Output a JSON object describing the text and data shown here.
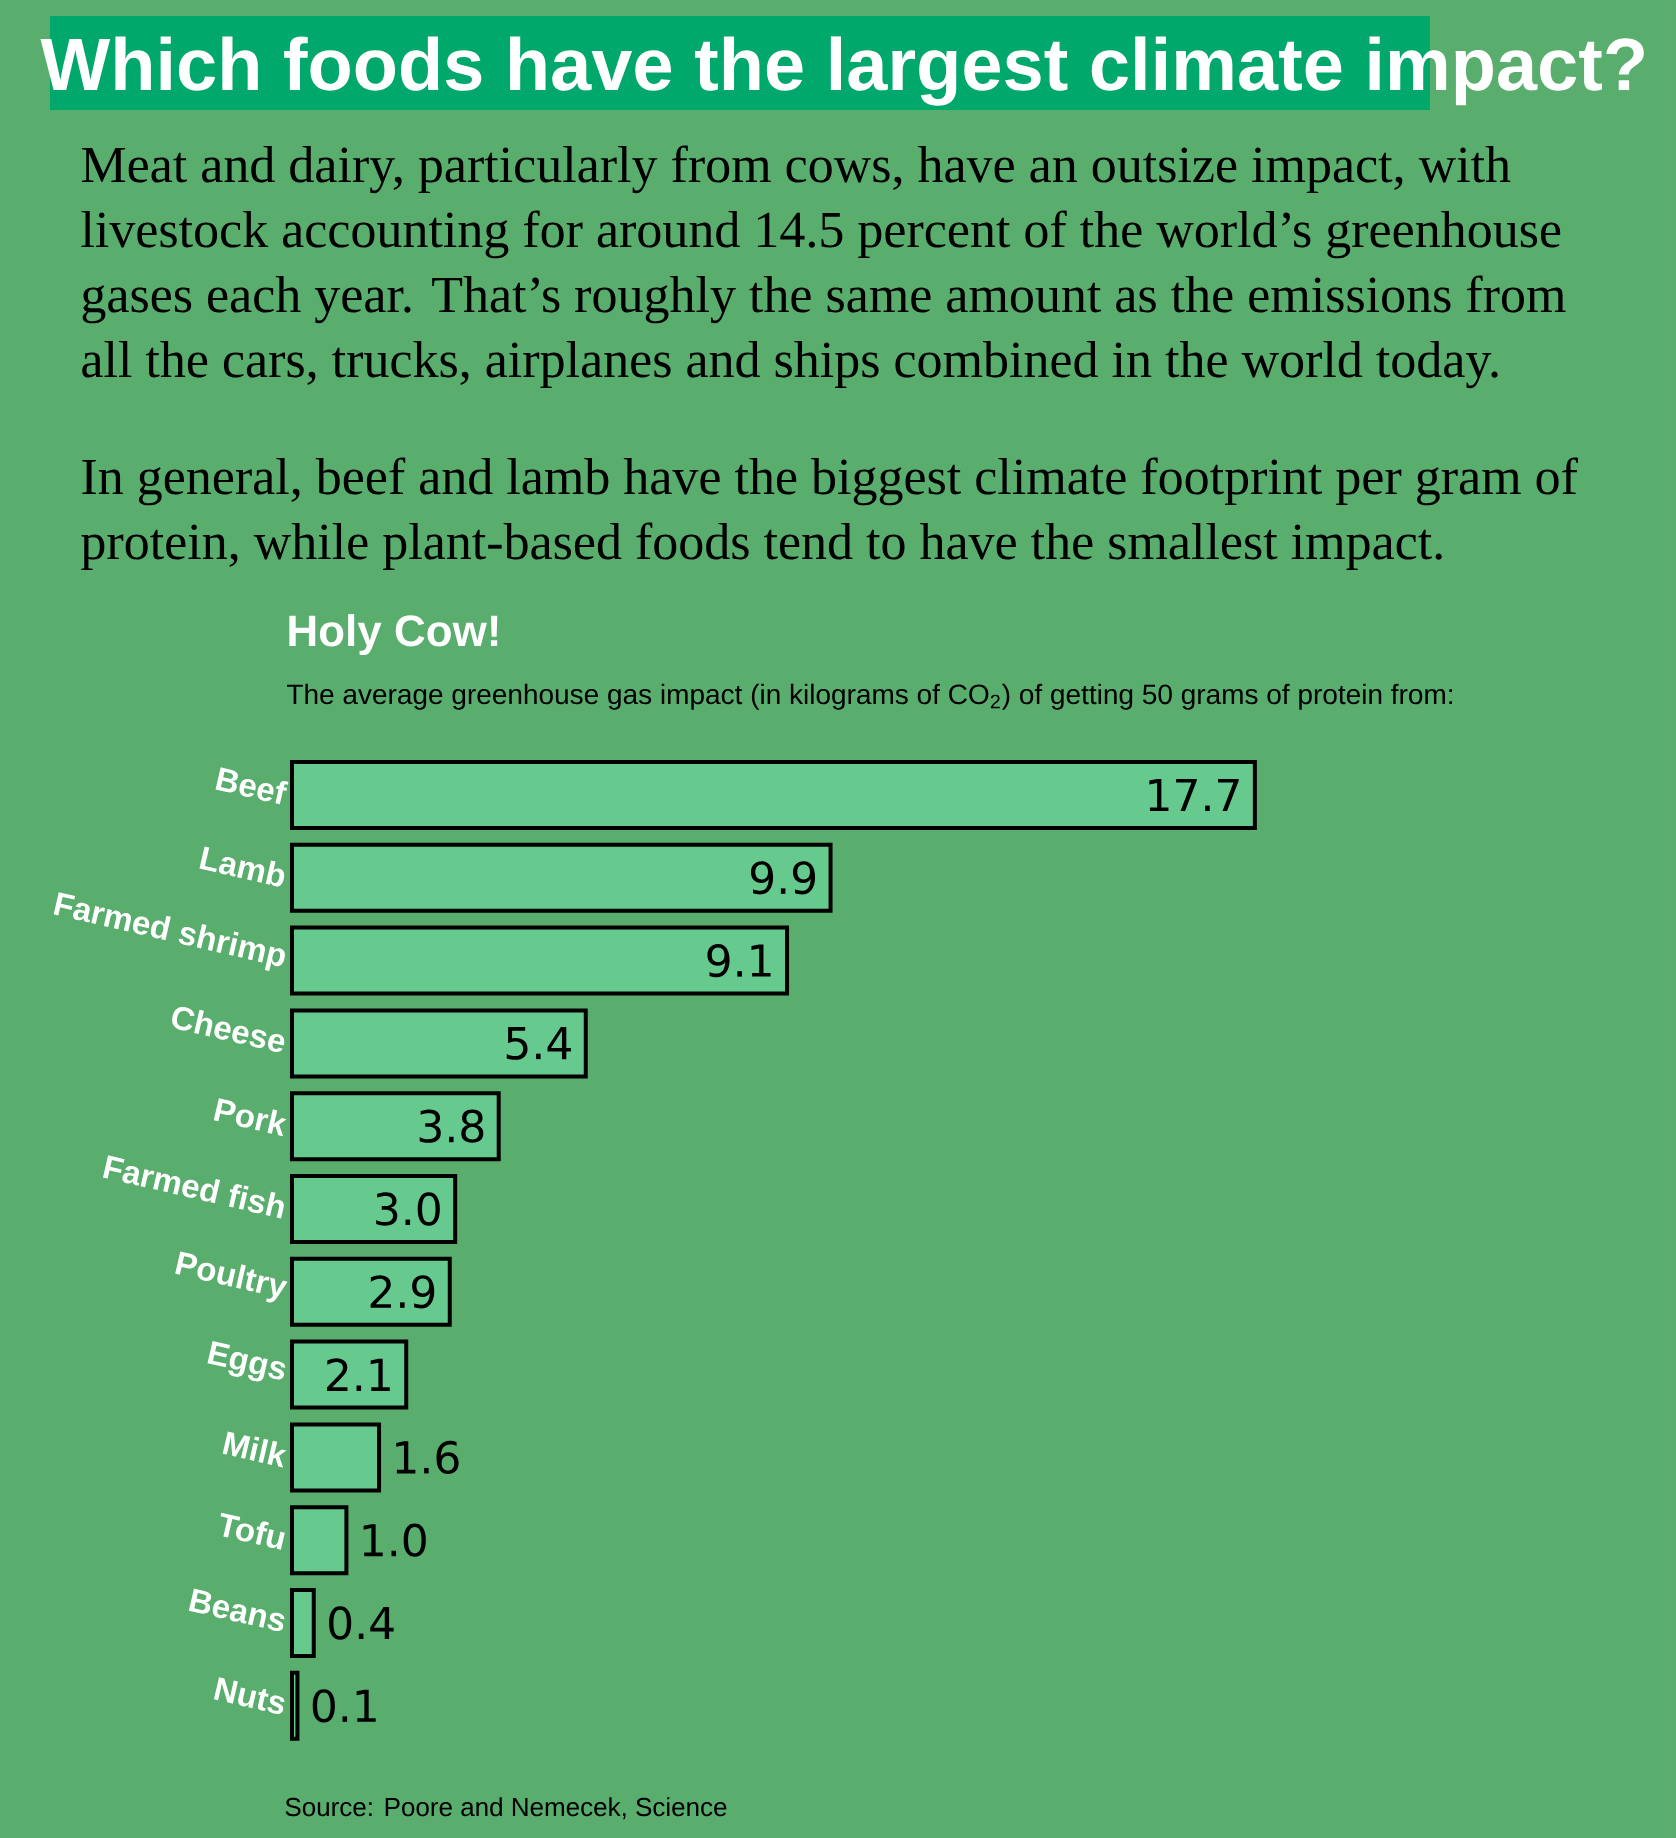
{
  "chart_data": {
    "type": "bar",
    "orientation": "horizontal",
    "title": "Which foods have the largest climate impact?",
    "subtitle": "Holy Cow!",
    "annotations": [
      "Meat and dairy, particularly from cows, have an outsize impact, with livestock accounting for around 14.5 percent of the world’s greenhouse gases each year. That’s roughly the same amount as the emissions from all the cars, trucks, airplanes and ships combined in the world today.",
      "In general, beef and lamb have the biggest climate footprint per gram of protein, while plant-based foods tend to have the smallest impact.",
      "The average greenhouse gas impact (in kilograms of CO$_{2}$) of getting 50 grams of protein from:",
      "Source: Poore and Nemecek, Science"
    ],
    "categories": [
      "Beef",
      "Lamb",
      "Farmed shrimp",
      "Cheese",
      "Pork",
      "Farmed fish",
      "Poultry",
      "Eggs",
      "Milk",
      "Tofu",
      "Beans",
      "Nuts"
    ],
    "values": [
      17.7,
      9.9,
      9.1,
      5.4,
      3.8,
      3.0,
      2.9,
      2.1,
      1.6,
      1.0,
      0.4,
      0.1
    ],
    "value_labels": [
      "17.7",
      "9.9",
      "9.1",
      "5.4",
      "3.8",
      "3.0",
      "2.9",
      "2.1",
      "1.6",
      "1.0",
      "0.4",
      "0.1"
    ],
    "color": "#66c98e",
    "tick_labels": "y"
  }
}
